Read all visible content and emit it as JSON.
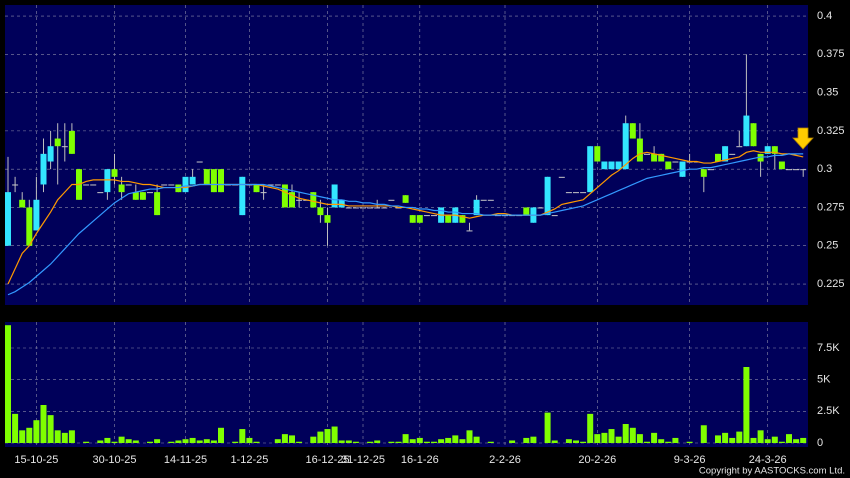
{
  "chart_data": {
    "type": "candlestick",
    "categories": [
      null,
      null,
      null,
      null,
      "15-10-25",
      null,
      null,
      null,
      null,
      null,
      null,
      null,
      null,
      null,
      null,
      "30-10-25",
      null,
      null,
      null,
      null,
      null,
      null,
      null,
      null,
      null,
      "14-11-25",
      null,
      null,
      null,
      null,
      null,
      null,
      null,
      null,
      "1-12-25",
      null,
      null,
      null,
      null,
      null,
      null,
      null,
      null,
      null,
      null,
      "16-12-25",
      null,
      null,
      null,
      null,
      "31-12-25",
      null,
      null,
      null,
      null,
      null,
      null,
      null,
      "16-1-26",
      null,
      null,
      null,
      null,
      null,
      null,
      null,
      null,
      null,
      null,
      null,
      "2-2-26",
      null,
      null,
      null,
      null,
      null,
      null,
      null,
      null,
      null,
      null,
      null,
      null,
      "20-2-26",
      null,
      null,
      null,
      null,
      null,
      null,
      null,
      null,
      null,
      null,
      null,
      null,
      "9-3-26",
      null,
      null,
      null,
      null,
      null,
      null,
      null,
      null,
      null,
      null,
      "24-3-26",
      null,
      null,
      null,
      null,
      null
    ],
    "open": [
      0.25,
      0.29,
      0.28,
      0.275,
      0.26,
      0.29,
      0.305,
      0.32,
      0.315,
      0.325,
      0.3,
      0.29,
      0.29,
      0.285,
      0.285,
      0.3,
      0.29,
      0.29,
      0.285,
      0.285,
      0.285,
      0.285,
      0.29,
      0.29,
      0.29,
      0.285,
      0.29,
      0.305,
      0.3,
      0.3,
      0.3,
      0.29,
      0.29,
      0.27,
      0.29,
      0.29,
      0.285,
      0.29,
      0.29,
      0.29,
      0.285,
      0.28,
      0.28,
      0.285,
      0.275,
      0.27,
      0.275,
      0.275,
      0.275,
      0.275,
      0.275,
      0.275,
      0.275,
      0.275,
      0.28,
      0.275,
      0.283,
      0.27,
      0.27,
      0.27,
      0.27,
      0.265,
      0.27,
      0.265,
      0.27,
      0.26,
      0.27,
      0.28,
      0.28,
      0.27,
      0.27,
      0.27,
      0.27,
      0.275,
      0.265,
      0.275,
      0.27,
      0.27,
      0.295,
      0.285,
      0.285,
      0.285,
      0.285,
      0.315,
      0.3,
      0.3,
      0.3,
      0.3,
      0.33,
      0.32,
      0.31,
      0.31,
      0.31,
      0.305,
      0.305,
      0.295,
      0.305,
      0.305,
      0.3,
      0.3,
      0.31,
      0.305,
      0.31,
      0.315,
      0.315,
      0.33,
      0.31,
      0.31,
      0.315,
      0.305,
      0.3,
      0.3,
      0.3
    ],
    "high": [
      0.308,
      0.295,
      0.285,
      0.28,
      0.295,
      0.32,
      0.325,
      0.33,
      0.33,
      0.33,
      0.3,
      0.29,
      0.29,
      0.285,
      0.3,
      0.31,
      0.295,
      0.29,
      0.29,
      0.285,
      0.285,
      0.29,
      0.29,
      0.29,
      0.29,
      0.295,
      0.3,
      0.305,
      0.3,
      0.3,
      0.3,
      0.29,
      0.29,
      0.295,
      0.29,
      0.29,
      0.29,
      0.29,
      0.29,
      0.29,
      0.29,
      0.285,
      0.28,
      0.285,
      0.28,
      0.275,
      0.29,
      0.28,
      0.275,
      0.275,
      0.275,
      0.275,
      0.28,
      0.275,
      0.28,
      0.275,
      0.283,
      0.27,
      0.27,
      0.27,
      0.27,
      0.275,
      0.27,
      0.275,
      0.27,
      0.265,
      0.283,
      0.28,
      0.28,
      0.27,
      0.27,
      0.27,
      0.27,
      0.275,
      0.275,
      0.275,
      0.295,
      0.27,
      0.295,
      0.285,
      0.285,
      0.285,
      0.315,
      0.315,
      0.305,
      0.305,
      0.305,
      0.335,
      0.33,
      0.33,
      0.31,
      0.315,
      0.31,
      0.305,
      0.305,
      0.305,
      0.31,
      0.305,
      0.3,
      0.3,
      0.31,
      0.315,
      0.31,
      0.325,
      0.375,
      0.33,
      0.31,
      0.315,
      0.315,
      0.305,
      0.3,
      0.3,
      0.3
    ],
    "low": [
      0.25,
      0.285,
      0.275,
      0.25,
      0.26,
      0.285,
      0.3,
      0.29,
      0.305,
      0.31,
      0.28,
      0.29,
      0.29,
      0.285,
      0.28,
      0.29,
      0.28,
      0.29,
      0.28,
      0.28,
      0.285,
      0.27,
      0.29,
      0.29,
      0.285,
      0.285,
      0.29,
      0.305,
      0.29,
      0.285,
      0.285,
      0.29,
      0.29,
      0.27,
      0.29,
      0.285,
      0.28,
      0.29,
      0.29,
      0.275,
      0.275,
      0.275,
      0.28,
      0.275,
      0.265,
      0.25,
      0.275,
      0.275,
      0.275,
      0.275,
      0.275,
      0.275,
      0.275,
      0.275,
      0.28,
      0.275,
      0.278,
      0.265,
      0.265,
      0.27,
      0.27,
      0.265,
      0.265,
      0.265,
      0.265,
      0.26,
      0.27,
      0.28,
      0.28,
      0.27,
      0.27,
      0.27,
      0.27,
      0.27,
      0.265,
      0.275,
      0.27,
      0.27,
      0.295,
      0.285,
      0.285,
      0.285,
      0.285,
      0.305,
      0.3,
      0.3,
      0.3,
      0.3,
      0.32,
      0.305,
      0.31,
      0.305,
      0.305,
      0.3,
      0.305,
      0.295,
      0.305,
      0.305,
      0.285,
      0.3,
      0.305,
      0.305,
      0.31,
      0.315,
      0.315,
      0.315,
      0.295,
      0.31,
      0.3,
      0.3,
      0.3,
      0.3,
      0.295
    ],
    "close": [
      0.285,
      0.29,
      0.275,
      0.25,
      0.28,
      0.31,
      0.315,
      0.315,
      0.315,
      0.31,
      0.28,
      0.29,
      0.29,
      0.285,
      0.3,
      0.295,
      0.285,
      0.29,
      0.28,
      0.28,
      0.285,
      0.27,
      0.29,
      0.29,
      0.285,
      0.295,
      0.295,
      0.305,
      0.29,
      0.285,
      0.285,
      0.29,
      0.29,
      0.295,
      0.29,
      0.285,
      0.285,
      0.29,
      0.29,
      0.275,
      0.275,
      0.28,
      0.28,
      0.275,
      0.27,
      0.265,
      0.29,
      0.28,
      0.275,
      0.275,
      0.275,
      0.275,
      0.275,
      0.275,
      0.28,
      0.275,
      0.278,
      0.265,
      0.265,
      0.27,
      0.27,
      0.275,
      0.265,
      0.275,
      0.265,
      0.26,
      0.28,
      0.28,
      0.28,
      0.27,
      0.27,
      0.27,
      0.27,
      0.27,
      0.275,
      0.275,
      0.295,
      0.27,
      0.295,
      0.285,
      0.285,
      0.285,
      0.315,
      0.305,
      0.305,
      0.305,
      0.305,
      0.33,
      0.32,
      0.305,
      0.31,
      0.305,
      0.305,
      0.3,
      0.305,
      0.305,
      0.305,
      0.305,
      0.295,
      0.3,
      0.305,
      0.315,
      0.31,
      0.315,
      0.335,
      0.315,
      0.305,
      0.315,
      0.31,
      0.3,
      0.3,
      0.3,
      0.3
    ],
    "up_color": "#33e6ff",
    "down_color": "#80ff00",
    "flat_color": "#c8c8c8",
    "ma_lines": [
      {
        "color": "#ff9900",
        "values": [
          0.225,
          0.235,
          0.245,
          0.25,
          0.258,
          0.265,
          0.272,
          0.28,
          0.285,
          0.29,
          0.29,
          0.292,
          0.293,
          0.293,
          0.293,
          0.293,
          0.292,
          0.292,
          0.291,
          0.29,
          0.29,
          0.289,
          0.288,
          0.288,
          0.288,
          0.288,
          0.289,
          0.29,
          0.29,
          0.29,
          0.29,
          0.29,
          0.29,
          0.29,
          0.29,
          0.29,
          0.289,
          0.288,
          0.287,
          0.285,
          0.283,
          0.281,
          0.28,
          0.279,
          0.278,
          0.277,
          0.277,
          0.277,
          0.276,
          0.276,
          0.276,
          0.276,
          0.276,
          0.276,
          0.276,
          0.275,
          0.275,
          0.274,
          0.273,
          0.272,
          0.271,
          0.27,
          0.27,
          0.27,
          0.269,
          0.268,
          0.269,
          0.27,
          0.27,
          0.271,
          0.271,
          0.27,
          0.27,
          0.27,
          0.27,
          0.27,
          0.272,
          0.274,
          0.277,
          0.278,
          0.279,
          0.28,
          0.284,
          0.288,
          0.292,
          0.296,
          0.299,
          0.303,
          0.307,
          0.31,
          0.311,
          0.31,
          0.309,
          0.308,
          0.307,
          0.306,
          0.305,
          0.305,
          0.304,
          0.304,
          0.305,
          0.306,
          0.307,
          0.308,
          0.311,
          0.312,
          0.311,
          0.311,
          0.311,
          0.31,
          0.31,
          0.309,
          0.308
        ]
      },
      {
        "color": "#3399ff",
        "values": [
          0.218,
          0.22,
          0.223,
          0.226,
          0.23,
          0.234,
          0.238,
          0.243,
          0.248,
          0.253,
          0.258,
          0.262,
          0.266,
          0.27,
          0.274,
          0.278,
          0.281,
          0.284,
          0.285,
          0.286,
          0.287,
          0.287,
          0.288,
          0.288,
          0.288,
          0.289,
          0.289,
          0.29,
          0.29,
          0.29,
          0.29,
          0.29,
          0.29,
          0.29,
          0.29,
          0.29,
          0.29,
          0.289,
          0.288,
          0.287,
          0.286,
          0.285,
          0.284,
          0.283,
          0.282,
          0.281,
          0.28,
          0.28,
          0.279,
          0.279,
          0.278,
          0.278,
          0.277,
          0.277,
          0.276,
          0.276,
          0.275,
          0.275,
          0.274,
          0.274,
          0.273,
          0.273,
          0.272,
          0.272,
          0.271,
          0.271,
          0.271,
          0.27,
          0.27,
          0.27,
          0.27,
          0.27,
          0.27,
          0.27,
          0.27,
          0.27,
          0.271,
          0.272,
          0.273,
          0.274,
          0.275,
          0.276,
          0.278,
          0.28,
          0.282,
          0.284,
          0.286,
          0.288,
          0.29,
          0.292,
          0.294,
          0.295,
          0.296,
          0.297,
          0.298,
          0.299,
          0.3,
          0.3,
          0.301,
          0.301,
          0.302,
          0.303,
          0.304,
          0.305,
          0.306,
          0.307,
          0.308,
          0.308,
          0.309,
          0.309,
          0.31,
          0.31,
          0.31
        ]
      }
    ],
    "ylim": [
      0.2113,
      0.4072
    ],
    "yticks": [
      0.225,
      0.25,
      0.275,
      0.3,
      0.325,
      0.35,
      0.375,
      0.4
    ],
    "grid": true,
    "volume": {
      "color": "#80ff00",
      "values": [
        9300,
        2300,
        1000,
        1200,
        1800,
        3000,
        2200,
        1000,
        800,
        1000,
        0,
        100,
        0,
        200,
        400,
        100,
        500,
        300,
        200,
        0,
        100,
        300,
        0,
        100,
        200,
        300,
        400,
        200,
        300,
        200,
        1200,
        0,
        100,
        1100,
        400,
        100,
        0,
        0,
        300,
        700,
        600,
        100,
        0,
        500,
        900,
        1100,
        1300,
        200,
        200,
        100,
        0,
        100,
        200,
        0,
        100,
        100,
        700,
        300,
        400,
        100,
        100,
        300,
        400,
        600,
        300,
        1000,
        500,
        0,
        100,
        0,
        0,
        200,
        0,
        400,
        500,
        0,
        2400,
        200,
        0,
        300,
        200,
        100,
        2300,
        700,
        800,
        1100,
        500,
        1500,
        1200,
        700,
        100,
        800,
        300,
        100,
        400,
        0,
        100,
        0,
        1400,
        0,
        600,
        800,
        400,
        900,
        6000,
        400,
        1000,
        300,
        500,
        100,
        700,
        300,
        400
      ],
      "ylim": [
        -316,
        9553
      ],
      "yticks": [
        0,
        {
          "value": 2500,
          "label": "2.5K"
        },
        {
          "value": 5000,
          "label": "5K"
        },
        {
          "value": 7500,
          "label": "7.5K"
        }
      ]
    },
    "copyright": "Copyright by AASTOCKS.com Ltd."
  }
}
